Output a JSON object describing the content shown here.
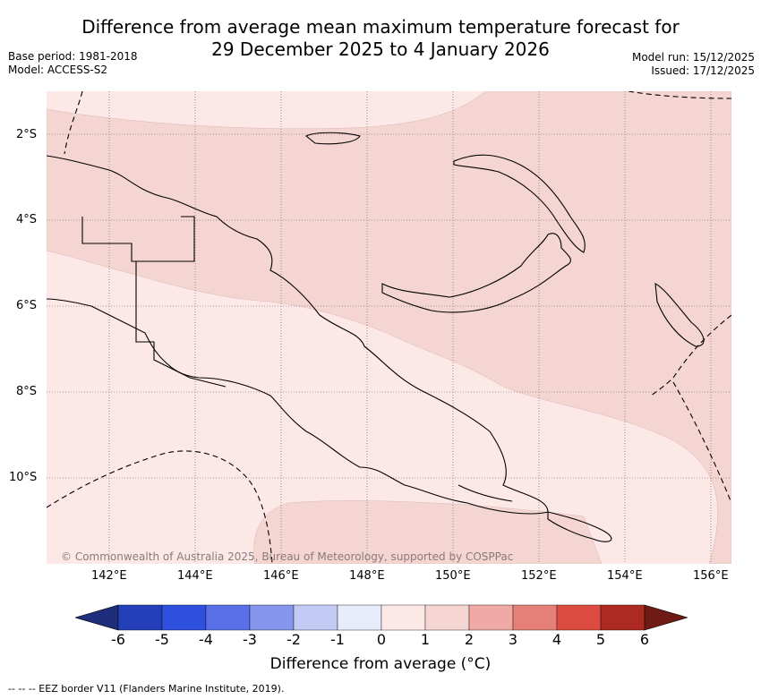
{
  "header": {
    "title_line1": "Difference from average mean maximum temperature forecast for",
    "title_line2": "29 December 2025 to 4 January 2026",
    "base_period": "Base period: 1981-2018",
    "model": "Model: ACCESS-S2",
    "model_run": "Model run: 15/12/2025",
    "issued": "Issued: 17/12/2025"
  },
  "map": {
    "lat_labels": [
      "2°S",
      "4°S",
      "6°S",
      "8°S",
      "10°S"
    ],
    "lon_labels": [
      "142°E",
      "144°E",
      "146°E",
      "148°E",
      "150°E",
      "152°E",
      "154°E",
      "156°E"
    ],
    "copyright": "© Commonwealth of Australia 2025, Bureau of Meteorology, supported by COSPPac",
    "colors": {
      "light_pink": "#fce8e6",
      "mid_pink": "#f5d5d2",
      "land_line": "#000000"
    }
  },
  "colorbar": {
    "ticks": [
      "-6",
      "-5",
      "-4",
      "-3",
      "-2",
      "-1",
      "0",
      "1",
      "2",
      "3",
      "4",
      "5",
      "6"
    ],
    "colors": [
      "#1f2e7a",
      "#2440b8",
      "#2f4fde",
      "#5a70e8",
      "#8596ec",
      "#c3caf4",
      "#e8ebfa",
      "#fce8e6",
      "#f5d5d2",
      "#efaaa5",
      "#e58078",
      "#dc4b3f",
      "#ad2a22",
      "#6e1a15"
    ],
    "label": "Difference from average (°C)"
  },
  "footnote": "--  --  -- EEZ border V11 (Flanders Marine Institute, 2019)."
}
